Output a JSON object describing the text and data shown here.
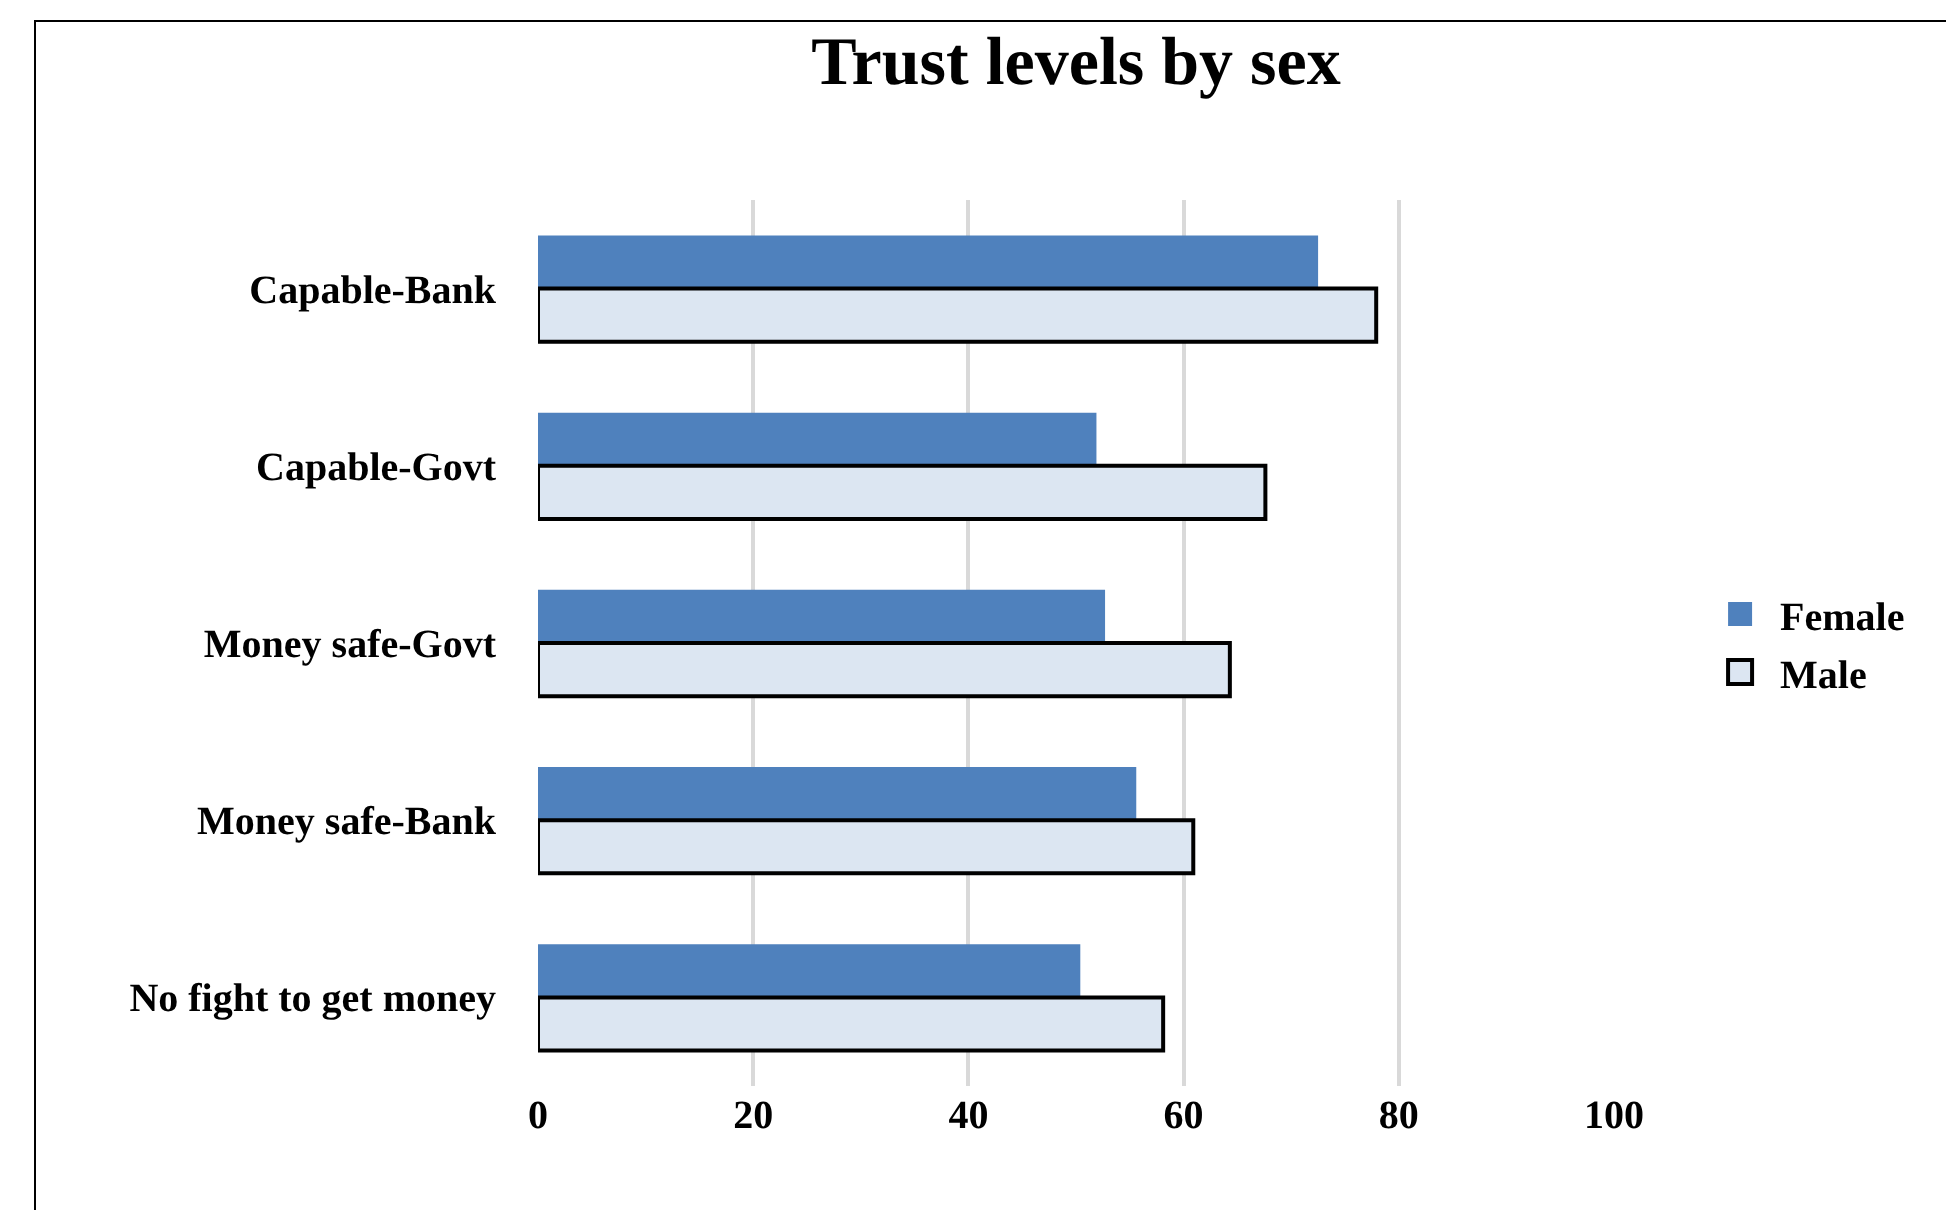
{
  "chart_data": {
    "type": "bar",
    "orientation": "horizontal",
    "title": "Trust levels by sex",
    "categories": [
      "Capable-Bank",
      "Capable-Govt",
      "Money safe-Govt",
      "Money safe-Bank",
      "No fight to get money"
    ],
    "series": [
      {
        "name": "Female",
        "color": "#4f81bd",
        "values": [
          72.5,
          51.9,
          52.7,
          55.6,
          50.4
        ]
      },
      {
        "name": "Male",
        "color": "#dce6f2",
        "values": [
          77.9,
          67.6,
          64.3,
          60.9,
          58.1
        ]
      }
    ],
    "xlim": [
      0,
      100
    ],
    "xticks": [
      0,
      20,
      40,
      60,
      80,
      100
    ],
    "grid": "x",
    "legend": "right"
  }
}
